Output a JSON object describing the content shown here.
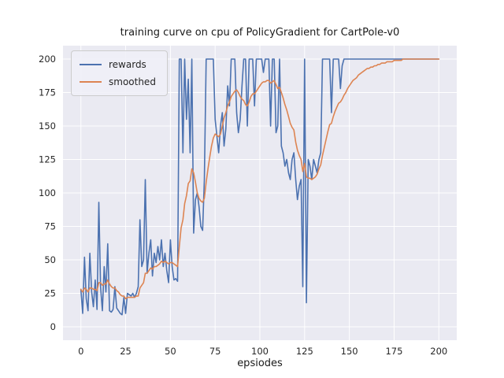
{
  "chart_data": {
    "type": "line",
    "title": "training curve on cpu of PolicyGradient for CartPole-v0",
    "xlabel": "epsiodes",
    "ylabel": "",
    "grid": true,
    "background": "#eaeaf2",
    "gridline_color": "#ffffff",
    "legend_position": "upper left",
    "xlim": [
      -10,
      210
    ],
    "ylim": [
      -10,
      210
    ],
    "xticks": [
      0,
      25,
      50,
      75,
      100,
      125,
      150,
      175,
      200
    ],
    "yticks": [
      0,
      25,
      50,
      75,
      100,
      125,
      150,
      175,
      200
    ],
    "x": {
      "start": 0,
      "step": 1,
      "count": 201
    },
    "series": [
      {
        "name": "rewards",
        "color": "#4c72b0",
        "values": [
          28,
          10,
          52,
          21,
          12,
          55,
          26,
          15,
          35,
          13,
          93,
          30,
          12,
          45,
          26,
          62,
          12,
          11,
          13,
          30,
          14,
          12,
          10,
          9,
          22,
          10,
          25,
          24,
          23,
          25,
          22,
          25,
          30,
          80,
          45,
          50,
          110,
          40,
          55,
          65,
          38,
          55,
          48,
          60,
          50,
          65,
          45,
          55,
          42,
          33,
          65,
          45,
          35,
          36,
          34,
          200,
          200,
          130,
          200,
          155,
          185,
          130,
          200,
          70,
          95,
          100,
          90,
          75,
          72,
          110,
          200,
          200,
          200,
          200,
          200,
          155,
          142,
          130,
          150,
          160,
          135,
          148,
          180,
          165,
          200,
          200,
          200,
          160,
          145,
          155,
          180,
          200,
          200,
          150,
          200,
          200,
          200,
          165,
          200,
          200,
          200,
          200,
          190,
          200,
          200,
          200,
          150,
          200,
          200,
          145,
          150,
          200,
          135,
          130,
          120,
          125,
          115,
          110,
          125,
          130,
          110,
          95,
          105,
          110,
          30,
          200,
          18,
          125,
          120,
          110,
          125,
          120,
          115,
          125,
          130,
          200,
          200,
          200,
          200,
          200,
          160,
          200,
          200,
          200,
          200,
          178,
          195,
          200,
          200,
          200,
          200,
          200,
          200,
          200,
          200,
          200,
          200,
          200,
          200,
          200,
          200,
          200,
          200,
          200,
          200,
          200,
          200,
          200,
          200,
          200,
          200,
          200,
          200,
          200,
          200,
          200,
          200,
          200,
          200,
          200,
          200,
          200,
          200,
          200,
          200,
          200,
          200,
          200,
          200,
          200,
          200,
          200,
          200,
          200,
          200,
          200,
          200,
          200,
          200,
          200,
          200
        ]
      },
      {
        "name": "smoothed",
        "color": "#dd8452",
        "values": [
          28,
          26,
          29,
          28,
          26,
          29,
          29,
          28,
          28,
          27,
          33,
          33,
          31,
          32,
          32,
          35,
          32,
          30,
          29,
          29,
          27,
          26,
          24,
          23,
          23,
          21,
          22,
          22,
          22,
          22,
          22,
          23,
          23,
          29,
          31,
          33,
          40,
          40,
          42,
          44,
          43,
          45,
          45,
          46,
          47,
          49,
          48,
          49,
          48,
          47,
          48,
          48,
          47,
          46,
          45,
          60,
          74,
          80,
          92,
          98,
          107,
          109,
          118,
          115,
          108,
          100,
          96,
          94,
          93,
          96,
          108,
          118,
          127,
          135,
          141,
          144,
          143,
          142,
          144,
          150,
          156,
          160,
          165,
          168,
          172,
          174,
          176,
          177,
          175,
          172,
          170,
          169,
          166,
          165,
          168,
          172,
          174,
          174,
          176,
          178,
          180,
          182,
          183,
          183,
          184,
          184,
          182,
          183,
          184,
          181,
          178,
          179,
          175,
          171,
          166,
          162,
          157,
          152,
          149,
          147,
          138,
          132,
          128,
          125,
          116,
          122,
          112,
          111,
          111,
          110,
          111,
          112,
          114,
          118,
          121,
          128,
          134,
          140,
          146,
          151,
          152,
          157,
          161,
          164,
          167,
          168,
          170,
          173,
          175,
          178,
          180,
          182,
          184,
          185,
          186,
          188,
          189,
          190,
          191,
          192,
          193,
          193,
          194,
          194,
          195,
          195,
          196,
          196,
          197,
          197,
          197,
          198,
          198,
          198,
          198,
          199,
          199,
          199,
          199,
          199,
          200,
          200,
          200,
          200,
          200,
          200,
          200,
          200,
          200,
          200,
          200,
          200,
          200,
          200,
          200,
          200,
          200,
          200,
          200,
          200,
          200
        ]
      }
    ]
  }
}
